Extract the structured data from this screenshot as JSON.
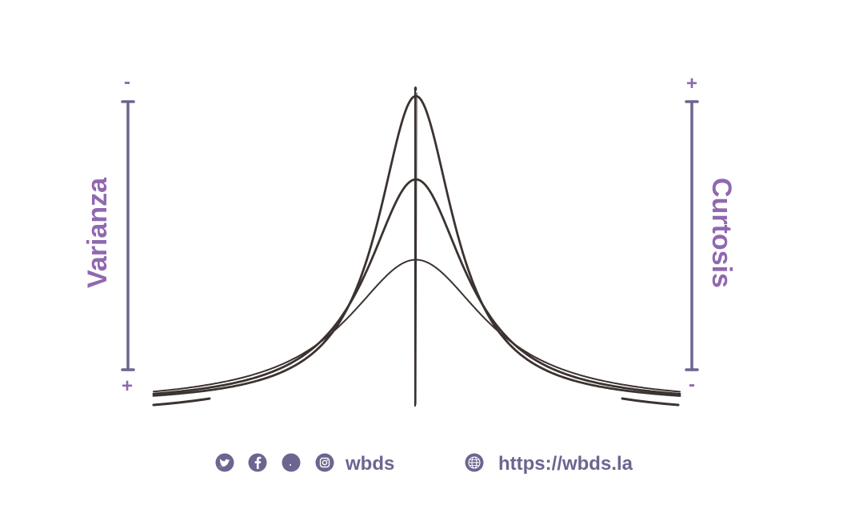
{
  "left_scale": {
    "label": "Varianza",
    "top_sign": "-",
    "bottom_sign": "+"
  },
  "right_scale": {
    "label": "Curtosis",
    "top_sign": "+",
    "bottom_sign": "-"
  },
  "curves": [
    {
      "peak_level": 1.0
    },
    {
      "peak_level": 0.73
    },
    {
      "peak_level": 0.47
    }
  ],
  "footer": {
    "social_icons": [
      "twitter-icon",
      "facebook-icon",
      "dot-icon",
      "instagram-icon"
    ],
    "handle": "wbds",
    "website_icon": "globe-icon",
    "url": "https://wbds.la"
  },
  "colors": {
    "accent": "#9068b0",
    "scale_bar": "#6e6490",
    "icon_fill": "#6e6490",
    "curve": "#3b3330",
    "footer_text": "#6e6490"
  }
}
